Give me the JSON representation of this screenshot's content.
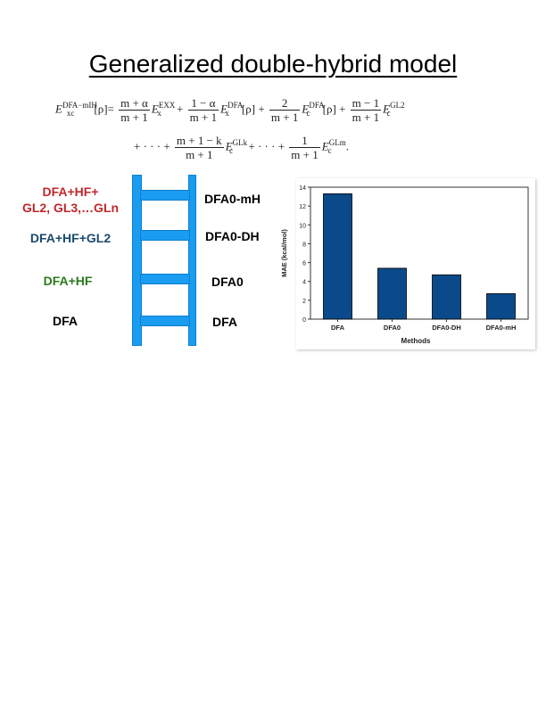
{
  "title": "Generalized double-hybrid model",
  "equation": {
    "line1": {
      "lhs_E": "E",
      "lhs_sub": "xc",
      "lhs_sup": "DFA−mIH",
      "lhs_arg": "[ρ]=",
      "t1_num": "m + α",
      "t1_den": "m + 1",
      "t1_sup": "EXX",
      "t1_sub": "x",
      "plus": "+",
      "t2_num": "1 − α",
      "t2_den": "m + 1",
      "t2_sup": "DFA",
      "t2_sub": "x",
      "t2_arg": "[ρ]",
      "t3_num": "2",
      "t3_den": "m + 1",
      "t3_sup": "DFA",
      "t3_sub": "c",
      "t3_arg": "[ρ]",
      "t4_num": "m − 1",
      "t4_den": "m + 1",
      "t4_sup": "GL2",
      "t4_sub": "c"
    },
    "line2": {
      "dots": "+ · · · +",
      "t5_num": "m + 1 − k",
      "t5_den": "m + 1",
      "t5_sup": "GLk",
      "t5_sub": "c",
      "dots2": "+ · · · +",
      "t6_num": "1",
      "t6_den": "m + 1",
      "t6_sup": "GLm",
      "t6_sub": "c",
      "end": "."
    }
  },
  "ladder": {
    "left_labels": [
      {
        "line1": "DFA+HF+",
        "line2": "GL2, GL3,…GLn",
        "color": "#c0282d"
      },
      {
        "line1": "DFA+HF+GL2",
        "color": "#1a4a6e"
      },
      {
        "line1": "DFA+HF",
        "color": "#2a7a1a"
      },
      {
        "line1": "DFA",
        "color": "#000000"
      }
    ],
    "right_labels": [
      "DFA0-mH",
      "DFA0-DH",
      "DFA0",
      "DFA"
    ],
    "color": "#1a9cf0"
  },
  "chart_data": {
    "type": "bar",
    "categories": [
      "DFA",
      "DFA0",
      "DFA0-DH",
      "DFA0-mH"
    ],
    "values": [
      13.3,
      5.4,
      4.7,
      2.7
    ],
    "xlabel": "Methods",
    "ylabel": "MAE (kcal/mol)",
    "ylim": [
      0,
      14
    ],
    "yticks": [
      0,
      2,
      4,
      6,
      8,
      10,
      12,
      14
    ],
    "bar_color": "#0b4a8a",
    "grid": false
  }
}
